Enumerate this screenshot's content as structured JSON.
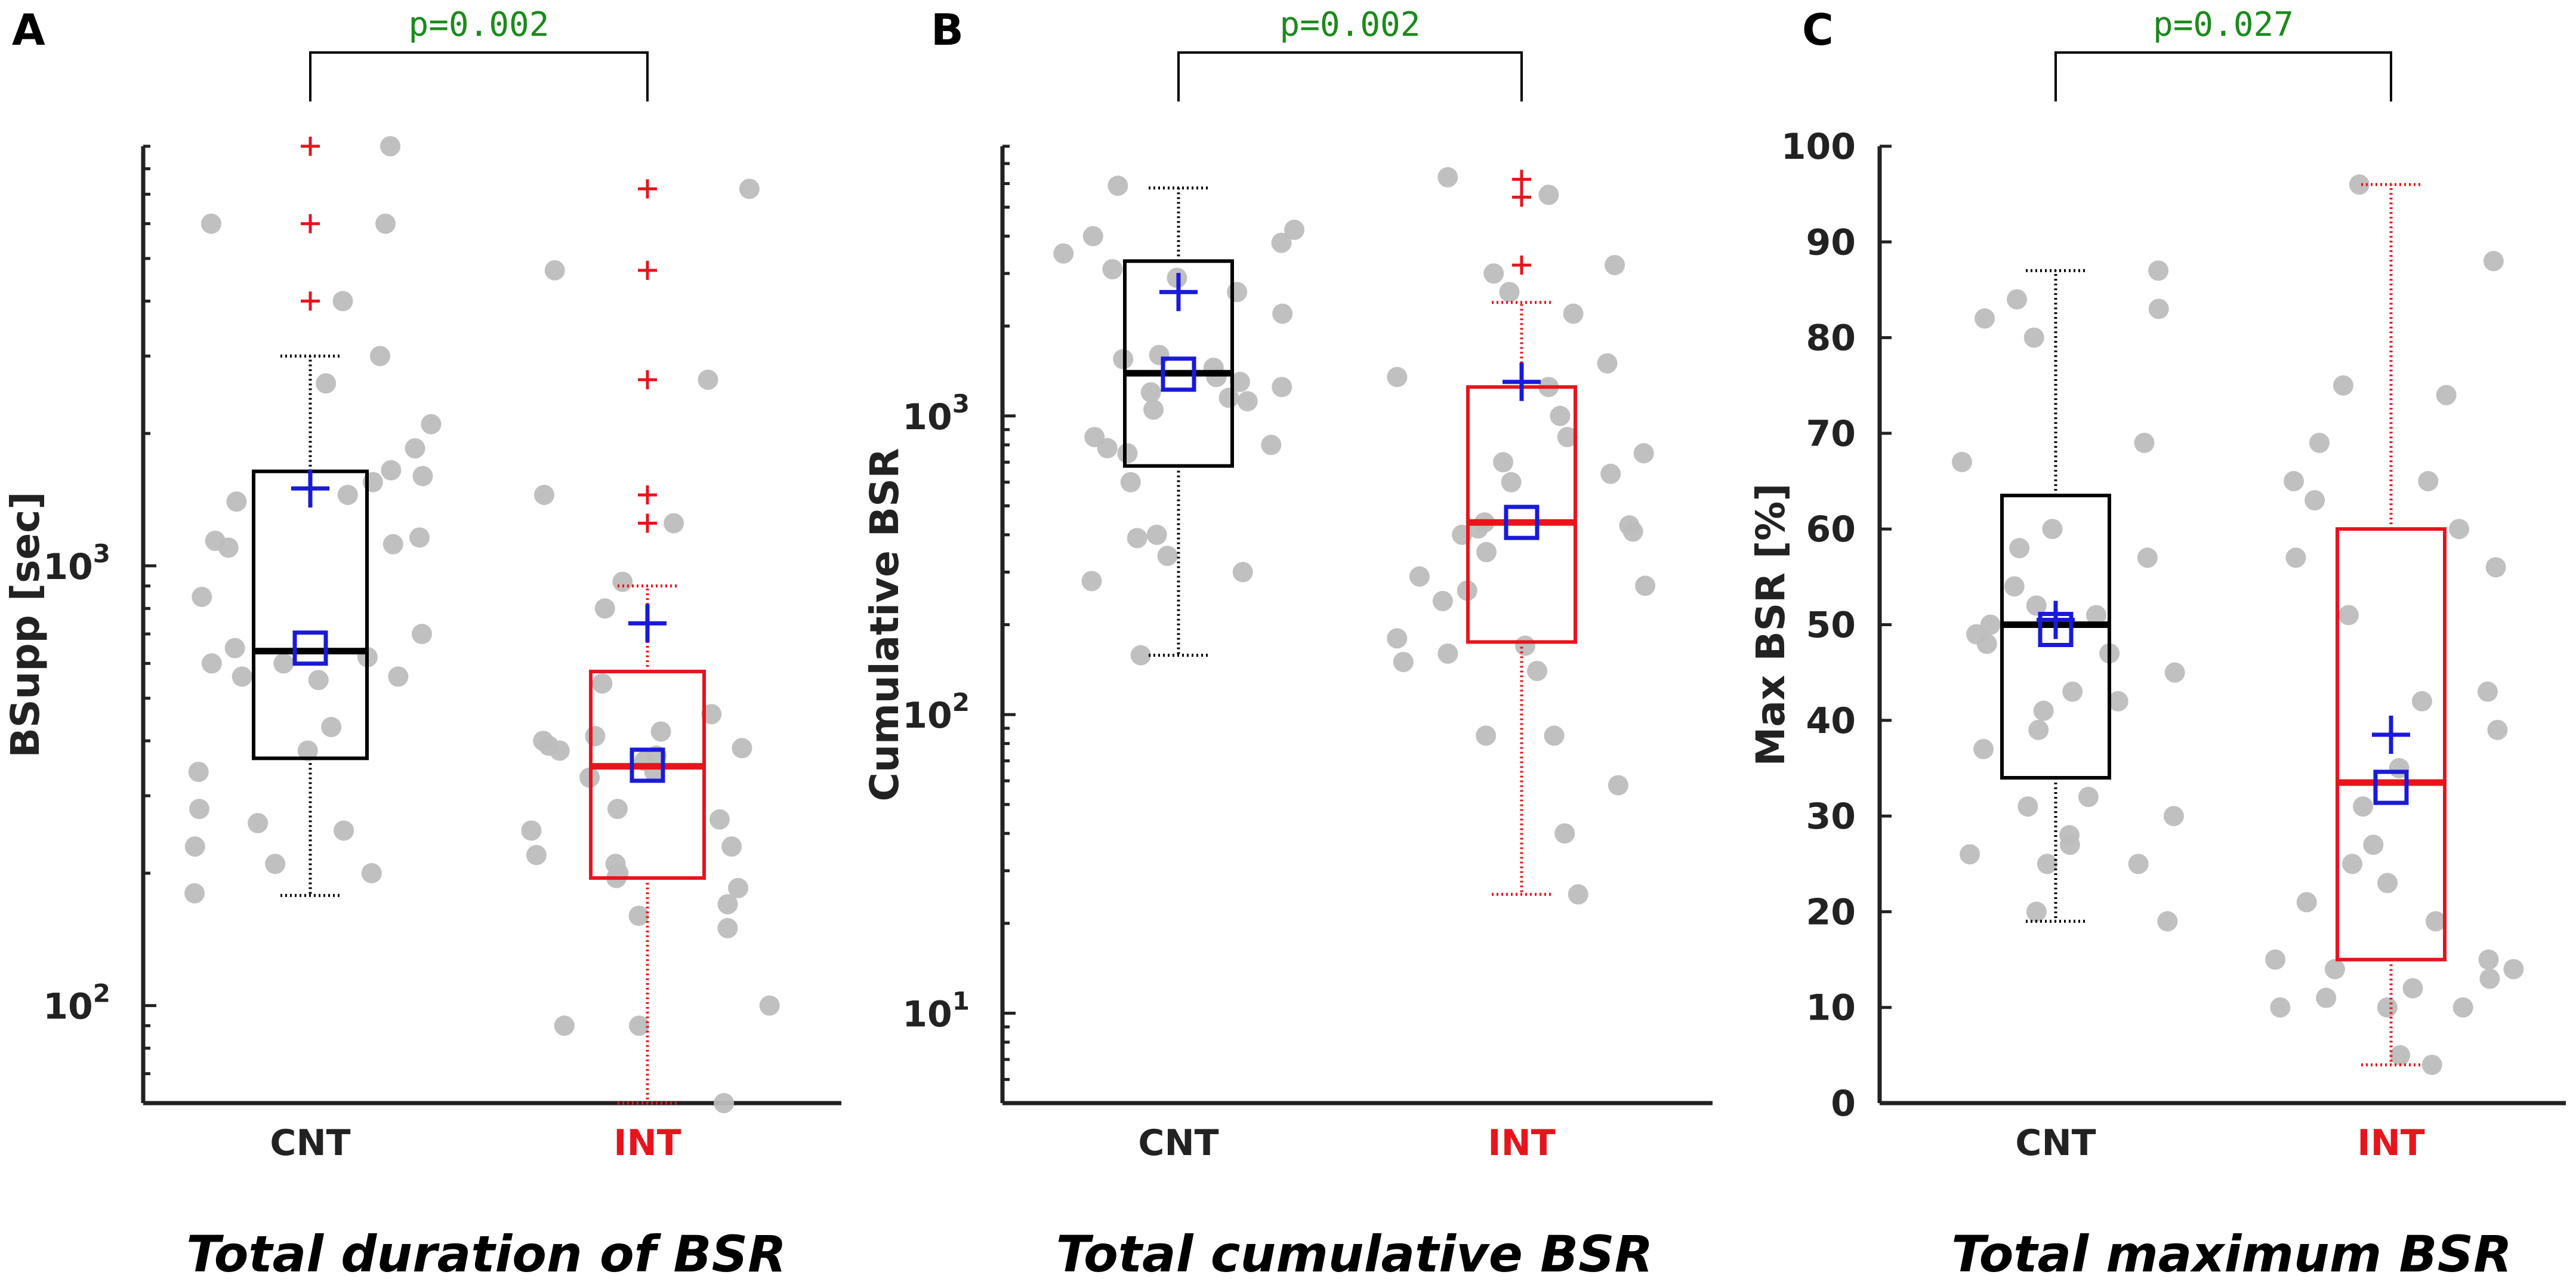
{
  "figure": {
    "colors": {
      "cnt": "#000000",
      "int": "#e8141c",
      "points": "#bdbdbd",
      "mean": "#1a1ad8",
      "pvalue": "#1a8a1a",
      "axis": "#222222"
    }
  },
  "chart_data": [
    {
      "panel": "A",
      "type": "box",
      "scale": "log",
      "ylabel": "BSupp [sec]",
      "ylim": [
        60,
        9000
      ],
      "major_ticks": [
        {
          "value": 100,
          "base": "10",
          "exp": "2"
        },
        {
          "value": 1000,
          "base": "10",
          "exp": "3"
        }
      ],
      "categories": [
        "CNT",
        "INT"
      ],
      "pvalue": "p=0.002",
      "caption": "Total duration of BSR",
      "series": [
        {
          "name": "CNT",
          "box": {
            "q1": 365,
            "median": 640,
            "q3": 1640,
            "whisker_low": 178,
            "whisker_high": 3000,
            "mean": 1500,
            "median_marker": 650
          },
          "outliers": [
            4000,
            6000,
            9000
          ],
          "points": [
            9000,
            6000,
            6000,
            4000,
            3000,
            2600,
            2100,
            1850,
            1650,
            1600,
            1550,
            1450,
            1400,
            1160,
            1140,
            1120,
            1100,
            850,
            700,
            650,
            620,
            600,
            600,
            560,
            560,
            550,
            430,
            380,
            340,
            280,
            260,
            250,
            230,
            210,
            200,
            180
          ]
        },
        {
          "name": "INT",
          "box": {
            "q1": 195,
            "median": 350,
            "q3": 575,
            "whisker_low": 60,
            "whisker_high": 900,
            "mean": 740,
            "median_marker": 352
          },
          "outliers": [
            1250,
            1450,
            2650,
            4700,
            7200
          ],
          "points": [
            7200,
            4700,
            2650,
            1450,
            1250,
            920,
            800,
            540,
            460,
            420,
            410,
            400,
            390,
            385,
            380,
            370,
            360,
            340,
            330,
            280,
            265,
            250,
            230,
            220,
            210,
            200,
            195,
            185,
            170,
            160,
            150,
            100,
            90,
            90,
            60
          ]
        }
      ]
    },
    {
      "panel": "B",
      "type": "box",
      "scale": "log",
      "ylabel": "Cumulative BSR",
      "ylim": [
        5,
        8000
      ],
      "major_ticks": [
        {
          "value": 10,
          "base": "10",
          "exp": "1"
        },
        {
          "value": 100,
          "base": "10",
          "exp": "2"
        },
        {
          "value": 1000,
          "base": "10",
          "exp": "3"
        }
      ],
      "categories": [
        "CNT",
        "INT"
      ],
      "pvalue": "p=0.002",
      "caption": "Total cumulative BSR",
      "series": [
        {
          "name": "CNT",
          "box": {
            "q1": 680,
            "median": 1390,
            "q3": 3300,
            "whisker_low": 158,
            "whisker_high": 5800,
            "mean": 2600,
            "median_marker": 1380
          },
          "outliers": [],
          "points": [
            5900,
            4200,
            4000,
            3800,
            3500,
            3100,
            2900,
            2600,
            2200,
            1600,
            1550,
            1450,
            1350,
            1300,
            1250,
            1200,
            1150,
            1120,
            1050,
            850,
            800,
            780,
            750,
            600,
            400,
            390,
            340,
            300,
            280,
            158
          ]
        },
        {
          "name": "INT",
          "box": {
            "q1": 175,
            "median": 440,
            "q3": 1250,
            "whisker_low": 25,
            "whisker_high": 2400,
            "mean": 1300,
            "median_marker": 440
          },
          "outliers": [
            3200,
            5400,
            6200
          ],
          "points": [
            6300,
            5500,
            3200,
            3000,
            2600,
            2200,
            1500,
            1350,
            1250,
            1000,
            850,
            750,
            700,
            640,
            600,
            440,
            430,
            420,
            410,
            400,
            350,
            290,
            270,
            260,
            240,
            180,
            170,
            160,
            150,
            140,
            85,
            85,
            58,
            40,
            25
          ]
        }
      ]
    },
    {
      "panel": "C",
      "type": "box",
      "scale": "linear",
      "ylabel": "Max BSR [%]",
      "ylim": [
        0,
        100
      ],
      "major_ticks": [
        {
          "value": 0,
          "label": "0"
        },
        {
          "value": 10,
          "label": "10"
        },
        {
          "value": 20,
          "label": "20"
        },
        {
          "value": 30,
          "label": "30"
        },
        {
          "value": 40,
          "label": "40"
        },
        {
          "value": 50,
          "label": "50"
        },
        {
          "value": 60,
          "label": "60"
        },
        {
          "value": 70,
          "label": "70"
        },
        {
          "value": 80,
          "label": "80"
        },
        {
          "value": 90,
          "label": "90"
        },
        {
          "value": 100,
          "label": "100"
        }
      ],
      "categories": [
        "CNT",
        "INT"
      ],
      "pvalue": "p=0.027",
      "caption": "Total maximum BSR",
      "series": [
        {
          "name": "CNT",
          "box": {
            "q1": 34,
            "median": 50,
            "q3": 63.5,
            "whisker_low": 19,
            "whisker_high": 87,
            "mean": 50.5,
            "median_marker": 49.5
          },
          "outliers": [],
          "points": [
            87,
            84,
            83,
            82,
            80,
            69,
            67,
            60,
            58,
            57,
            54,
            52,
            51,
            50,
            49,
            48,
            47,
            45,
            43,
            42,
            41,
            39,
            37,
            32,
            31,
            30,
            28,
            27,
            26,
            25,
            25,
            20,
            19
          ]
        },
        {
          "name": "INT",
          "box": {
            "q1": 15,
            "median": 33.5,
            "q3": 60,
            "whisker_low": 4,
            "whisker_high": 96,
            "mean": 38.5,
            "median_marker": 33
          },
          "outliers": [],
          "points": [
            96,
            88,
            75,
            74,
            69,
            65,
            65,
            63,
            60,
            57,
            56,
            51,
            43,
            42,
            39,
            35,
            31,
            27,
            25,
            23,
            21,
            19,
            15,
            15,
            14,
            14,
            13,
            12,
            11,
            10,
            10,
            10,
            5,
            4
          ]
        }
      ]
    }
  ]
}
